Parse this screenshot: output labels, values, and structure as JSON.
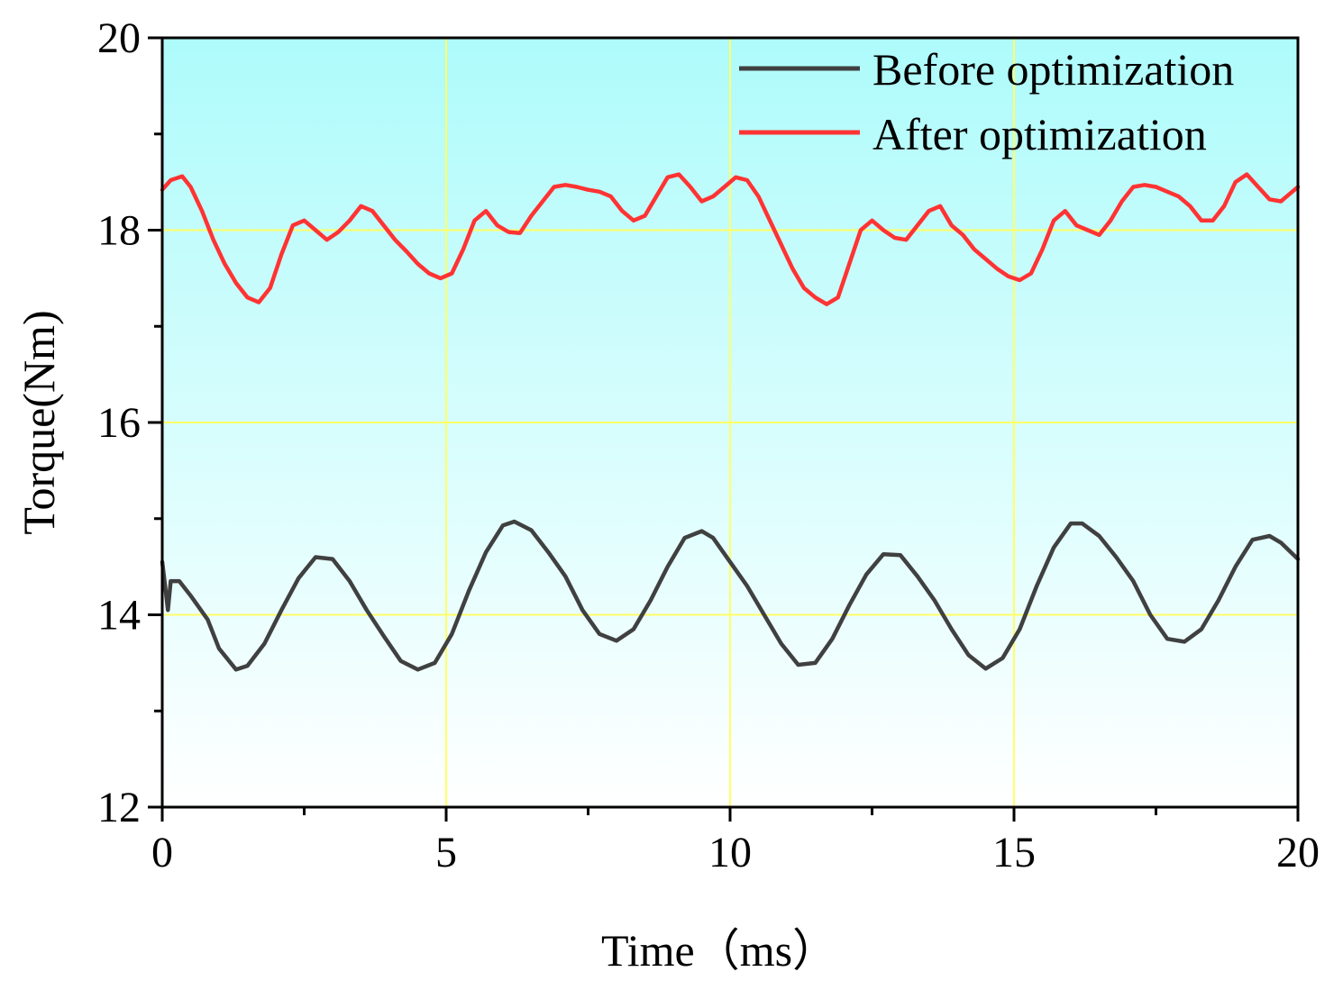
{
  "chart_data": {
    "type": "line",
    "title": "",
    "xlabel": "Time（ms）",
    "ylabel": "Torque(Nm)",
    "xlim": [
      0,
      20
    ],
    "ylim": [
      12,
      20
    ],
    "x_ticks": [
      "0",
      "5",
      "10",
      "15",
      "20"
    ],
    "y_ticks": [
      "12",
      "14",
      "16",
      "18",
      "20"
    ],
    "x_tick_values": [
      0,
      5,
      10,
      15,
      20
    ],
    "y_tick_values": [
      12,
      14,
      16,
      18,
      20
    ],
    "x_minor_step": 2.5,
    "y_minor_step": 1,
    "grid": true,
    "legend_position": "top-right",
    "series": [
      {
        "name": "Before optimization",
        "color": "#404040",
        "x": [
          0,
          0.05,
          0.1,
          0.15,
          0.3,
          0.5,
          0.8,
          1.0,
          1.3,
          1.5,
          1.8,
          2.1,
          2.4,
          2.7,
          3.0,
          3.3,
          3.6,
          3.9,
          4.2,
          4.5,
          4.8,
          5.1,
          5.4,
          5.7,
          6.0,
          6.2,
          6.5,
          6.8,
          7.1,
          7.4,
          7.7,
          8.0,
          8.3,
          8.6,
          8.9,
          9.2,
          9.5,
          9.7,
          10.0,
          10.3,
          10.6,
          10.9,
          11.2,
          11.5,
          11.8,
          12.1,
          12.4,
          12.7,
          13.0,
          13.3,
          13.6,
          13.9,
          14.2,
          14.5,
          14.8,
          15.1,
          15.4,
          15.7,
          16.0,
          16.2,
          16.5,
          16.8,
          17.1,
          17.4,
          17.7,
          18.0,
          18.3,
          18.6,
          18.9,
          19.2,
          19.5,
          19.7,
          20.0
        ],
        "values": [
          14.55,
          14.3,
          14.05,
          14.35,
          14.35,
          14.2,
          13.95,
          13.65,
          13.43,
          13.47,
          13.7,
          14.05,
          14.38,
          14.6,
          14.58,
          14.35,
          14.05,
          13.78,
          13.52,
          13.43,
          13.5,
          13.8,
          14.25,
          14.65,
          14.93,
          14.97,
          14.88,
          14.65,
          14.4,
          14.05,
          13.8,
          13.73,
          13.85,
          14.15,
          14.5,
          14.8,
          14.87,
          14.8,
          14.55,
          14.3,
          14.0,
          13.7,
          13.48,
          13.5,
          13.75,
          14.1,
          14.42,
          14.63,
          14.62,
          14.4,
          14.15,
          13.85,
          13.58,
          13.44,
          13.55,
          13.85,
          14.3,
          14.7,
          14.95,
          14.95,
          14.82,
          14.6,
          14.35,
          14.0,
          13.75,
          13.72,
          13.85,
          14.15,
          14.5,
          14.78,
          14.82,
          14.75,
          14.58
        ]
      },
      {
        "name": "After optimization",
        "color": "#ff3333",
        "x": [
          0,
          0.15,
          0.35,
          0.5,
          0.7,
          0.9,
          1.1,
          1.3,
          1.5,
          1.7,
          1.9,
          2.1,
          2.3,
          2.5,
          2.7,
          2.9,
          3.1,
          3.3,
          3.5,
          3.7,
          3.9,
          4.1,
          4.3,
          4.5,
          4.7,
          4.9,
          5.1,
          5.3,
          5.5,
          5.7,
          5.9,
          6.1,
          6.3,
          6.5,
          6.7,
          6.9,
          7.1,
          7.3,
          7.5,
          7.7,
          7.9,
          8.1,
          8.3,
          8.5,
          8.7,
          8.9,
          9.1,
          9.3,
          9.5,
          9.7,
          9.9,
          10.1,
          10.3,
          10.5,
          10.7,
          10.9,
          11.1,
          11.3,
          11.5,
          11.7,
          11.9,
          12.1,
          12.3,
          12.5,
          12.7,
          12.9,
          13.1,
          13.3,
          13.5,
          13.7,
          13.9,
          14.1,
          14.3,
          14.5,
          14.7,
          14.9,
          15.1,
          15.3,
          15.5,
          15.7,
          15.9,
          16.1,
          16.3,
          16.5,
          16.7,
          16.9,
          17.1,
          17.3,
          17.5,
          17.7,
          17.9,
          18.1,
          18.3,
          18.5,
          18.7,
          18.9,
          19.1,
          19.3,
          19.5,
          19.7,
          19.9,
          20.0
        ],
        "values": [
          18.42,
          18.52,
          18.56,
          18.45,
          18.2,
          17.9,
          17.65,
          17.45,
          17.3,
          17.25,
          17.4,
          17.75,
          18.05,
          18.1,
          18.0,
          17.9,
          17.98,
          18.1,
          18.25,
          18.2,
          18.05,
          17.9,
          17.78,
          17.65,
          17.55,
          17.5,
          17.55,
          17.8,
          18.1,
          18.2,
          18.05,
          17.98,
          17.97,
          18.15,
          18.3,
          18.45,
          18.47,
          18.45,
          18.42,
          18.4,
          18.35,
          18.2,
          18.1,
          18.15,
          18.35,
          18.55,
          18.58,
          18.45,
          18.3,
          18.35,
          18.45,
          18.55,
          18.52,
          18.35,
          18.1,
          17.85,
          17.6,
          17.4,
          17.3,
          17.23,
          17.3,
          17.65,
          18.0,
          18.1,
          18.0,
          17.92,
          17.9,
          18.05,
          18.2,
          18.25,
          18.05,
          17.95,
          17.8,
          17.7,
          17.6,
          17.52,
          17.48,
          17.55,
          17.8,
          18.1,
          18.2,
          18.05,
          18.0,
          17.95,
          18.1,
          18.3,
          18.45,
          18.47,
          18.45,
          18.4,
          18.35,
          18.25,
          18.1,
          18.1,
          18.25,
          18.5,
          18.58,
          18.45,
          18.32,
          18.3,
          18.4,
          18.45
        ]
      }
    ]
  }
}
